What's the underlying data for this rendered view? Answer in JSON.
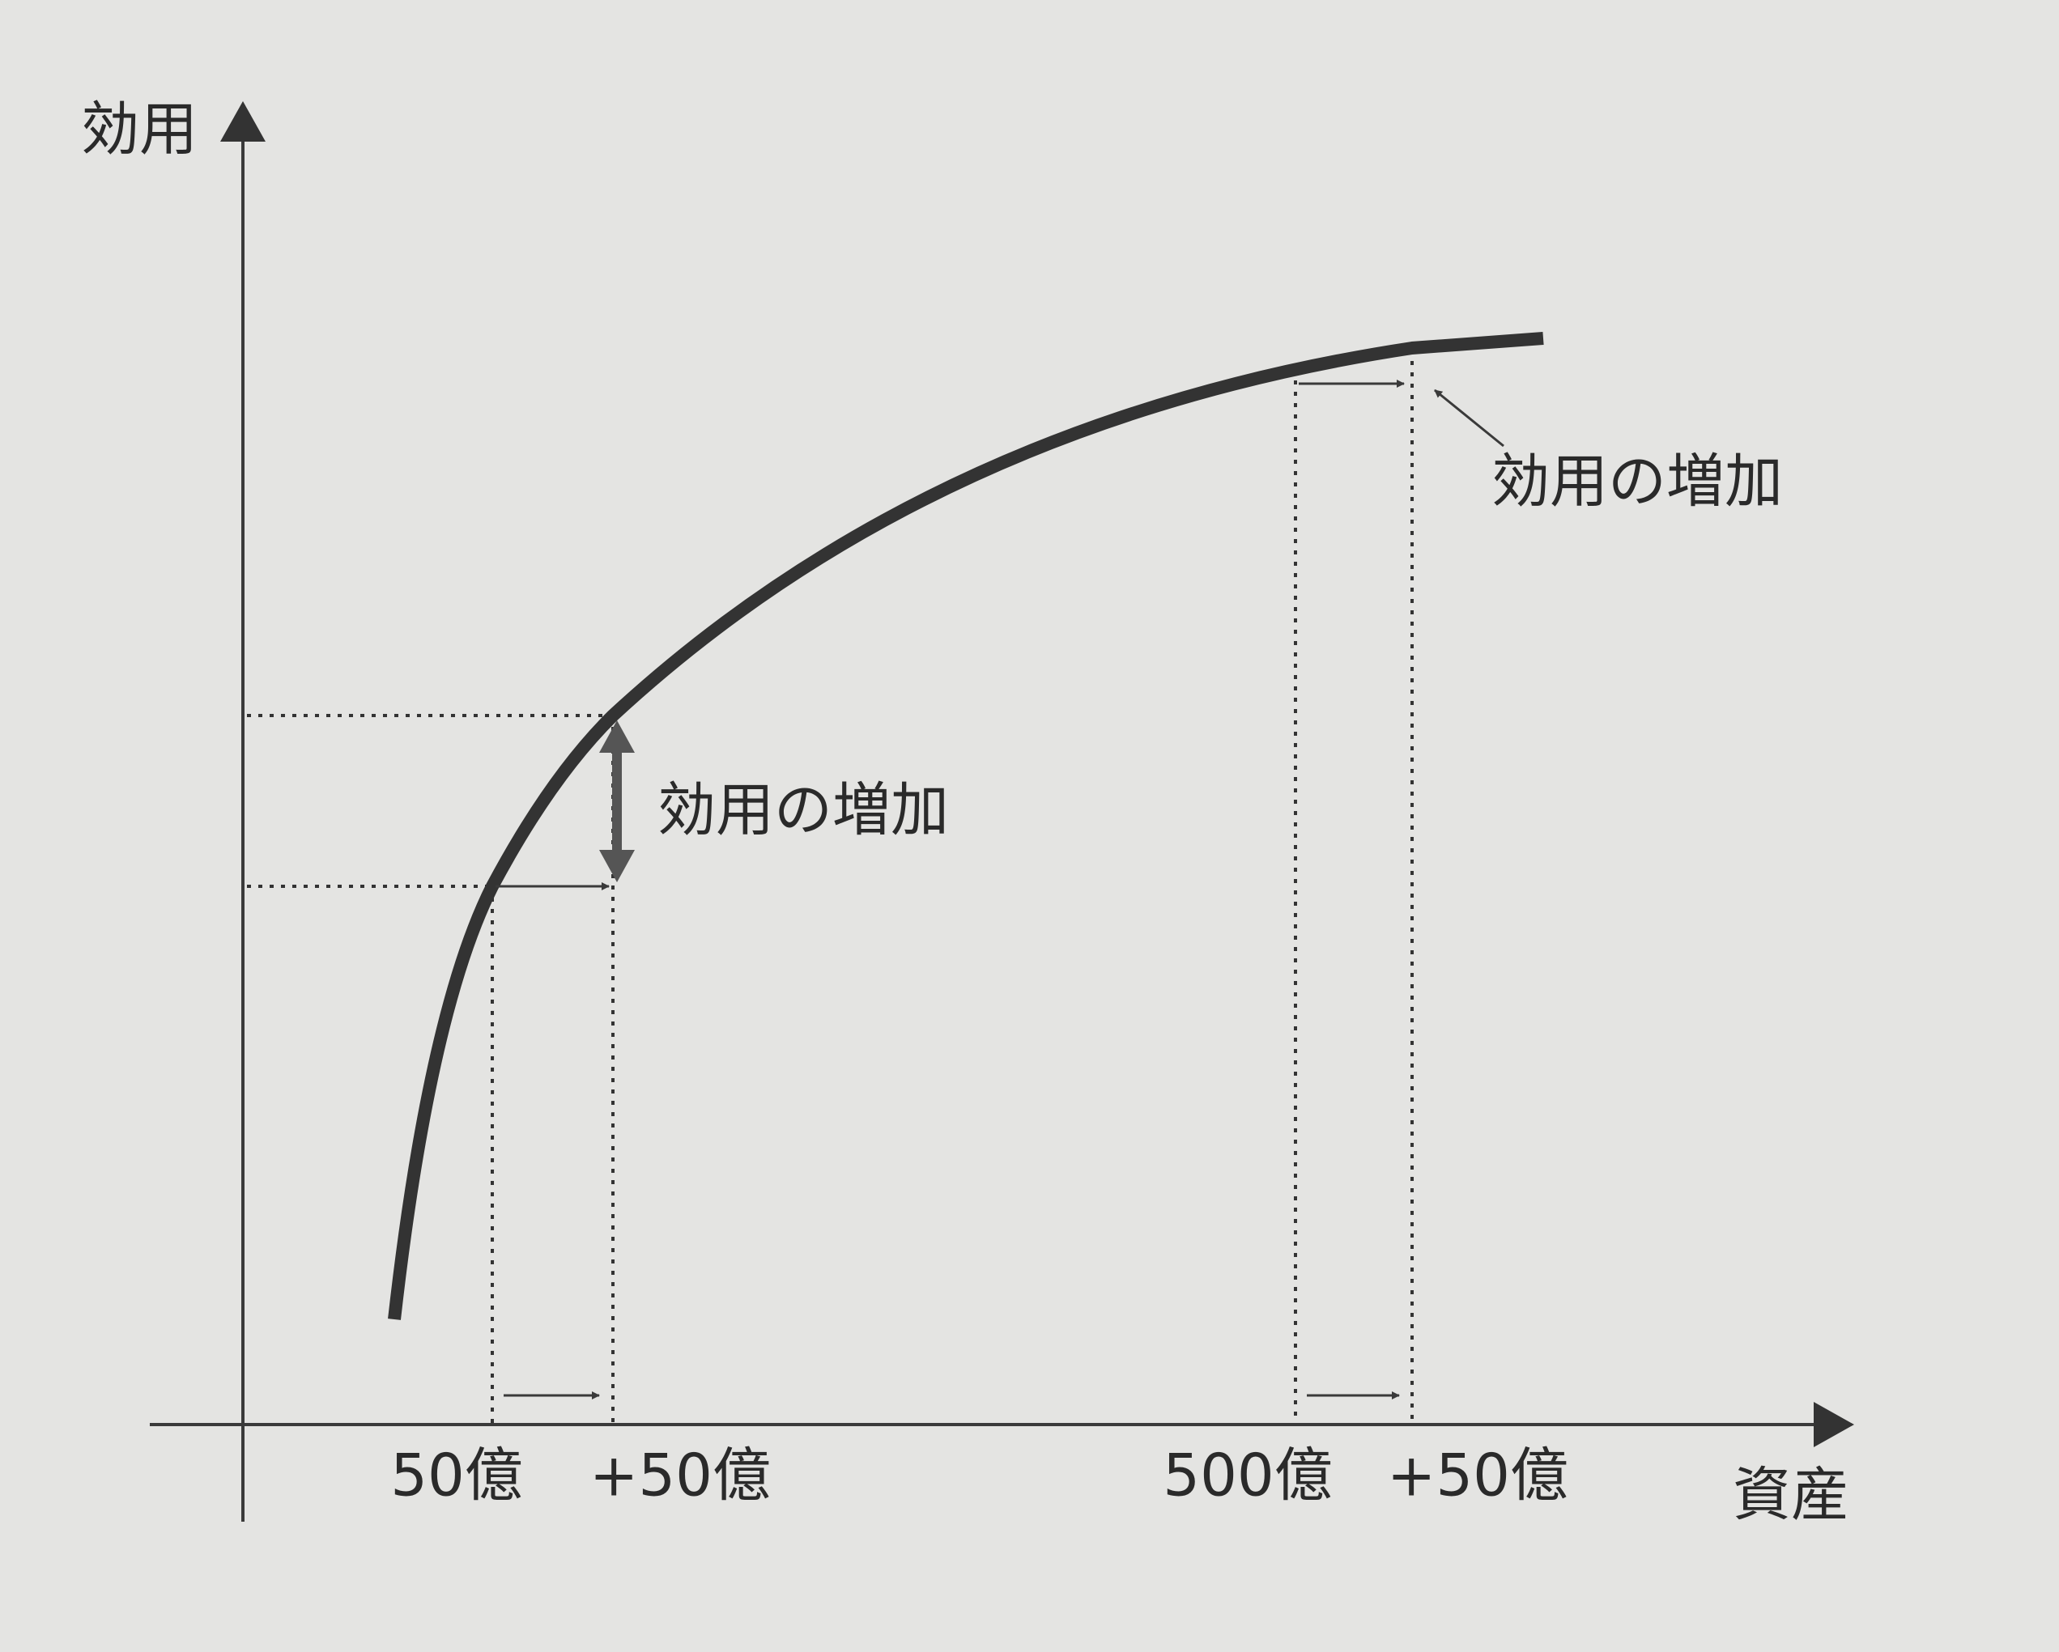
{
  "axes": {
    "y_label": "効用",
    "x_label": "資産"
  },
  "x_labels": [
    "50億",
    "+50億",
    "500億",
    "+50億"
  ],
  "annotations": [
    "効用の増加",
    "効用の増加"
  ]
}
